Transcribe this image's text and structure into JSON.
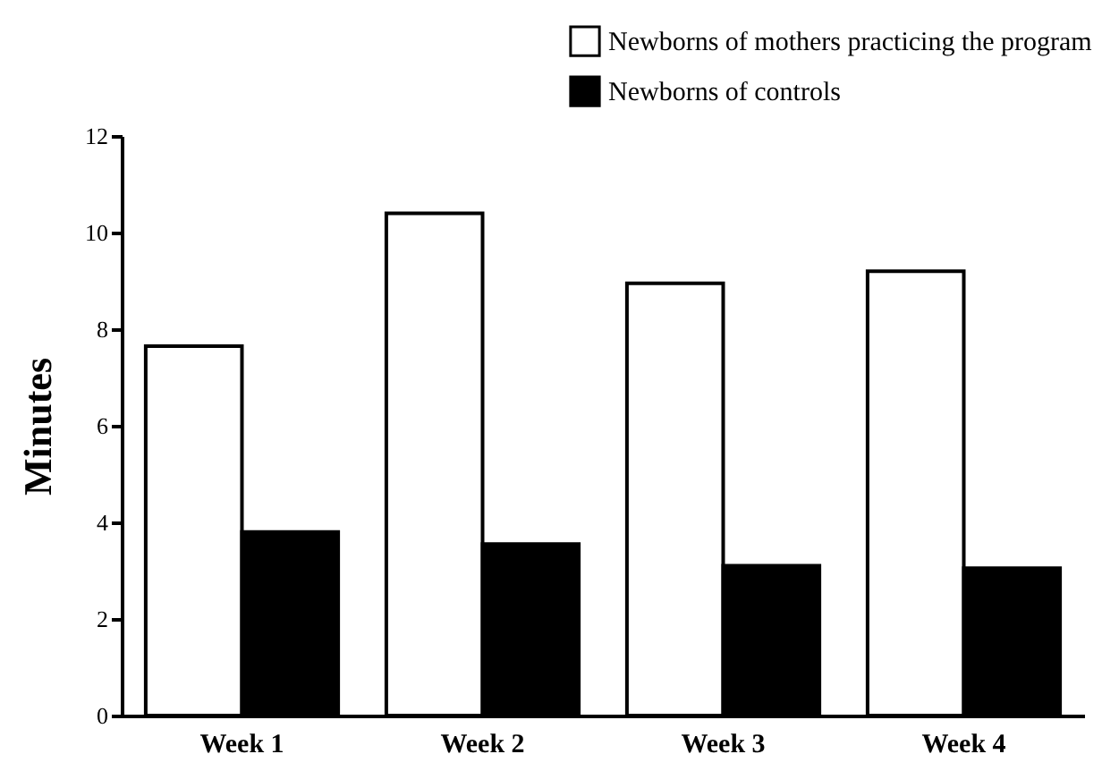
{
  "chart_data": {
    "type": "bar",
    "ylabel": "Minutes",
    "categories": [
      "Week  1",
      "Week  2",
      "Week  3",
      "Week  4"
    ],
    "series": [
      {
        "name": "Newborns of mothers practicing the program",
        "color": "#ffffff",
        "values": [
          7.65,
          10.4,
          8.95,
          9.2
        ]
      },
      {
        "name": "Newborns of controls",
        "color": "#000000",
        "values": [
          3.8,
          3.55,
          3.1,
          3.05
        ]
      }
    ],
    "ylim": [
      0,
      12
    ],
    "yticks": [
      0,
      2,
      4,
      6,
      8,
      10,
      12
    ],
    "grid": false,
    "legend": "top right"
  }
}
